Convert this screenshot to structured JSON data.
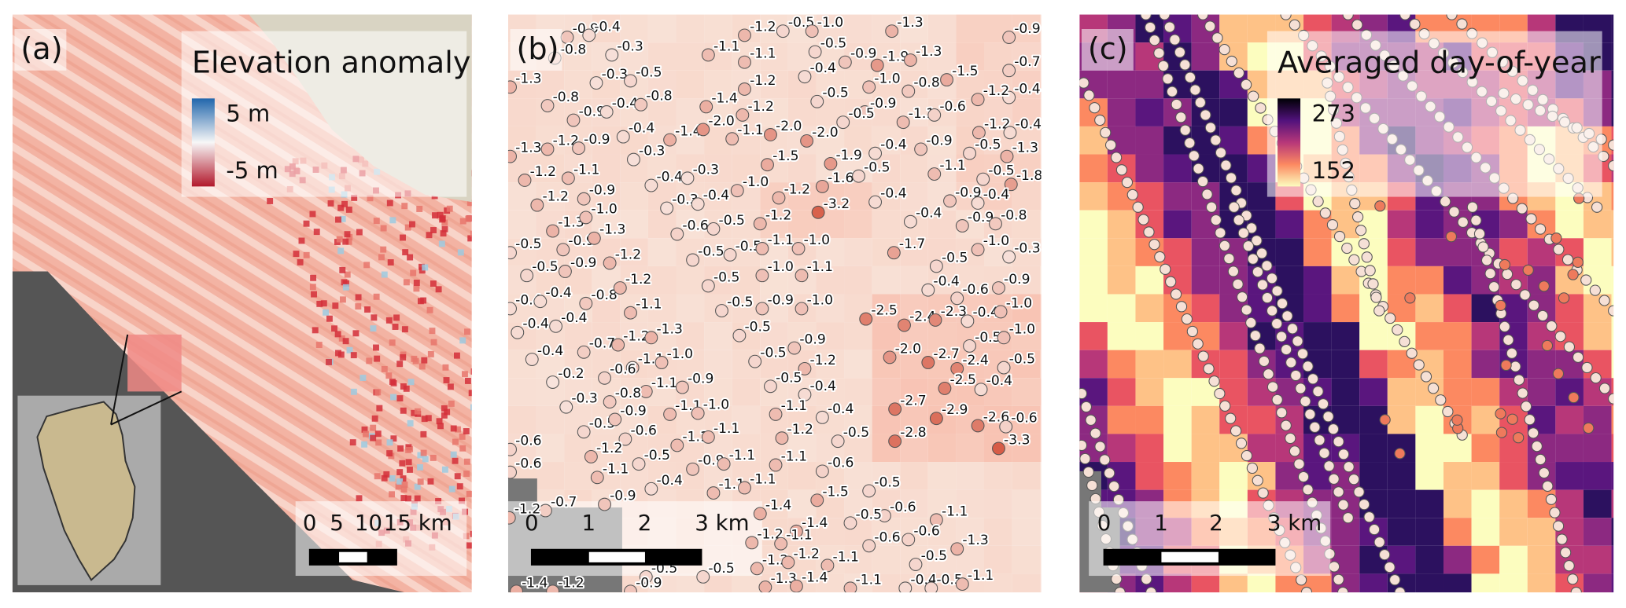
{
  "panels": [
    {
      "label": "(a)",
      "legend": {
        "title": "Elevation anomaly",
        "max": "5 m",
        "min": "-5 m"
      },
      "scale_bar": [
        "0",
        "5",
        "10",
        "15 km"
      ]
    },
    {
      "label": "(b)",
      "scale_bar": [
        "0",
        "1",
        "2",
        "3 km"
      ],
      "point_labels": [
        "-0.9",
        "-0.4",
        "-1.2",
        "-0.5",
        "-1.0",
        "-1.3",
        "-0.9",
        "-0.8",
        "-0.3",
        "-1.1",
        "-1.1",
        "-0.5",
        "-0.9",
        "-1.9",
        "-1.3",
        "-0.7",
        "-1.3",
        "-0.3",
        "-0.5",
        "-1.2",
        "-0.4",
        "-1.0",
        "-0.8",
        "-1.5",
        "-0.4",
        "-1.2",
        "-0.8",
        "-1.4",
        "-1.2",
        "-0.5",
        "-0.9",
        "-1.1",
        "-0.6",
        "-0.9",
        "-0.4",
        "-0.8",
        "-0.4",
        "-1.4",
        "-2.0",
        "-1.1",
        "-2.0",
        "-2.0",
        "-0.5",
        "-1.2",
        "-0.4",
        "-1.3",
        "-1.2",
        "-0.9",
        "-0.3",
        "-1.5",
        "-1.9",
        "-0.4",
        "-0.9",
        "-0.5",
        "-1.3",
        "-1.2",
        "-1.1",
        "-0.4",
        "-0.3",
        "-1.0",
        "-1.2",
        "-1.6",
        "-0.5",
        "-1.1",
        "-0.5",
        "-1.8",
        "-1.2",
        "-0.9",
        "-0.3",
        "-0.4",
        "-3.2",
        "-0.4",
        "-0.9",
        "-0.4",
        "-1.3",
        "-1.0",
        "-0.6",
        "-0.5",
        "-1.2",
        "-0.4",
        "-0.9",
        "-0.8",
        "-0.5",
        "-0.9",
        "-1.3",
        "-0.5",
        "-0.5",
        "-1.1",
        "-1.0",
        "-1.7",
        "-1.0",
        "-0.3",
        "-0.5",
        "-0.9",
        "-1.2",
        "-0.5",
        "-1.0",
        "-1.1",
        "-0.5",
        "-0.4",
        "-0.4",
        "-0.8",
        "-1.2",
        "-0.4",
        "-0.6",
        "-0.9",
        "-0.4",
        "-0.4",
        "-1.1",
        "-0.5",
        "-0.9",
        "-1.0",
        "-2.5",
        "-2.4",
        "-2.3",
        "-0.4",
        "-1.0",
        "-0.7",
        "-1.2",
        "-1.3",
        "-0.5",
        "-0.9",
        "-0.5",
        "-1.0",
        "-0.4",
        "-1.1",
        "-1.0",
        "-2.0",
        "-2.7",
        "-2.4",
        "-0.5",
        "-0.2",
        "-0.6",
        "-1.1",
        "-0.9",
        "-0.5",
        "-1.2",
        "-2.5",
        "-0.4",
        "-0.3",
        "-0.8",
        "-1.1",
        "-1.0",
        "-0.5",
        "-0.4",
        "-1.1",
        "-0.4",
        "-2.7",
        "-2.9",
        "-2.6",
        "-0.6",
        "-0.5",
        "-0.9",
        "-0.6",
        "-1.1",
        "-1.1",
        "-1.2",
        "-0.5",
        "-2.8",
        "-3.3",
        "-0.6",
        "-1.2",
        "-0.5",
        "-0.9",
        "-1.1",
        "-1.1",
        "-0.6",
        "-0.6",
        "-1.1",
        "-0.4",
        "-1.1",
        "-1.1",
        "-1.5",
        "-0.5",
        "-0.7",
        "-0.9",
        "-1.4",
        "-0.6",
        "-1.1",
        "-1.2",
        "-1.4",
        "-0.5",
        "-0.6",
        "-1.3",
        "-0.6",
        "-1.2",
        "-1.1",
        "-1.2",
        "-1.2",
        "-1.1",
        "-0.5",
        "-0.5",
        "-0.5",
        "-1.3",
        "-1.4",
        "-1.1",
        "-0.4",
        "-0.5",
        "-1.1",
        "-1.4",
        "-1.2",
        "-0.9"
      ]
    },
    {
      "label": "(c)",
      "legend": {
        "title": "Averaged day-of-year",
        "max": "273",
        "min": "152"
      },
      "scale_bar": [
        "0",
        "1",
        "2",
        "3 km"
      ]
    }
  ]
}
